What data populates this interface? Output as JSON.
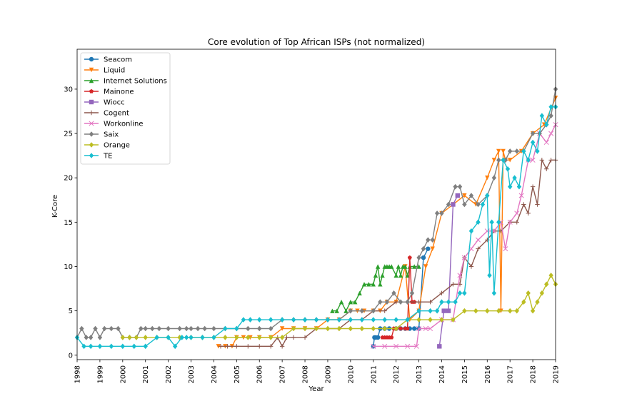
{
  "chart_data": {
    "type": "line",
    "title": "Core evolution of Top African ISPs (not normalized)",
    "xlabel": "Year",
    "ylabel": "K-Core",
    "xlim": [
      1998,
      2019
    ],
    "ylim": [
      -0.5,
      34.5
    ],
    "xticks": [
      "1998",
      "1999",
      "2000",
      "2001",
      "2002",
      "2003",
      "2004",
      "2005",
      "2006",
      "2007",
      "2008",
      "2009",
      "2010",
      "2011",
      "2012",
      "2013",
      "2014",
      "2015",
      "2016",
      "2017",
      "2018",
      "2019"
    ],
    "yticks": [
      0,
      5,
      10,
      15,
      20,
      25,
      30
    ],
    "legend_position": "upper-left",
    "grid": false,
    "series": [
      {
        "name": "Seacom",
        "color": "#1f77b4",
        "marker": "circle",
        "x": [
          2011.0,
          2011.05,
          2011.1,
          2011.2,
          2011.3,
          2011.5,
          2011.7,
          2012.0,
          2012.2,
          2012.4,
          2012.6,
          2012.8,
          2013.0,
          2013.2,
          2013.4
        ],
        "y": [
          1,
          2,
          2,
          2,
          3,
          3,
          3,
          3,
          3,
          3,
          3,
          3,
          3,
          11,
          12
        ]
      },
      {
        "name": "Liquid",
        "color": "#ff7f0e",
        "marker": "triangle-down",
        "x": [
          2004.2,
          2004.5,
          2004.8,
          2005.0,
          2005.3,
          2005.6,
          2006.0,
          2006.5,
          2007.0,
          2007.5,
          2008.0,
          2008.5,
          2009.0,
          2009.5,
          2010.0,
          2010.3,
          2010.6,
          2011.0,
          2011.3,
          2011.6,
          2012.0,
          2012.4,
          2012.6,
          2013.0,
          2013.3,
          2013.6,
          2014.0,
          2014.5,
          2015.0,
          2015.5,
          2016.0,
          2016.3,
          2016.5,
          2016.6,
          2016.7,
          2016.8,
          2017.0,
          2017.5,
          2018.0,
          2018.5,
          2019.0
        ],
        "y": [
          1,
          1,
          1,
          2,
          2,
          2,
          2,
          2,
          3,
          3,
          3,
          3,
          4,
          4,
          5,
          5,
          5,
          5,
          5,
          6,
          6,
          10,
          4,
          5,
          10,
          12,
          16,
          17,
          18,
          17,
          20,
          22,
          23,
          5,
          23,
          22,
          22,
          23,
          25,
          26,
          29
        ]
      },
      {
        "name": "Internet Solutions",
        "color": "#2ca02c",
        "marker": "triangle-up",
        "x": [
          2009.2,
          2009.4,
          2009.6,
          2009.8,
          2010.0,
          2010.2,
          2010.4,
          2010.6,
          2010.8,
          2011.0,
          2011.1,
          2011.2,
          2011.3,
          2011.4,
          2011.5,
          2011.6,
          2011.7,
          2011.8,
          2012.0,
          2012.1,
          2012.2,
          2012.3,
          2012.4,
          2012.5,
          2012.6,
          2012.8,
          2013.0
        ],
        "y": [
          5,
          5,
          6,
          5,
          6,
          6,
          7,
          8,
          8,
          8,
          9,
          10,
          8,
          9,
          10,
          10,
          10,
          10,
          9,
          10,
          9,
          10,
          10,
          9,
          10,
          10,
          10
        ]
      },
      {
        "name": "Mainone",
        "color": "#d62728",
        "marker": "pentagon",
        "x": [
          2011.4,
          2011.5,
          2011.6,
          2011.7,
          2011.8,
          2011.9,
          2012.0,
          2012.2,
          2012.4,
          2012.5,
          2012.6,
          2012.7,
          2012.8
        ],
        "y": [
          2,
          2,
          2,
          2,
          2,
          3,
          3,
          3,
          3,
          3,
          11,
          6,
          6
        ]
      },
      {
        "name": "Wiocc",
        "color": "#9467bd",
        "marker": "square",
        "x": [
          2013.9,
          2014.1,
          2014.3,
          2014.5,
          2014.7
        ],
        "y": [
          1,
          5,
          5,
          17,
          18
        ]
      },
      {
        "name": "Cogent",
        "color": "#8c564b",
        "marker": "plus",
        "x": [
          2004.3,
          2004.6,
          2005.0,
          2005.5,
          2006.0,
          2006.5,
          2006.8,
          2007.0,
          2007.2,
          2007.5,
          2008.0,
          2008.5,
          2009.0,
          2009.5,
          2010.0,
          2010.5,
          2011.0,
          2011.5,
          2012.0,
          2012.5,
          2013.0,
          2013.5,
          2014.0,
          2014.5,
          2014.8,
          2015.0,
          2015.3,
          2015.6,
          2016.0,
          2016.3,
          2016.6,
          2017.0,
          2017.3,
          2017.6,
          2017.8,
          2018.0,
          2018.2,
          2018.4,
          2018.6,
          2018.8,
          2019.0
        ],
        "y": [
          1,
          1,
          1,
          1,
          1,
          1,
          2,
          1,
          2,
          2,
          2,
          3,
          3,
          3,
          4,
          4,
          5,
          5,
          6,
          6,
          6,
          6,
          7,
          8,
          8,
          11,
          10,
          12,
          13,
          14,
          14,
          15,
          15,
          17,
          16,
          19,
          17,
          22,
          21,
          22,
          22
        ]
      },
      {
        "name": "Workonline",
        "color": "#e377c2",
        "marker": "x",
        "x": [
          2011.0,
          2011.5,
          2012.0,
          2012.5,
          2012.9,
          2013.0,
          2013.3,
          2013.5,
          2014.0,
          2014.5,
          2014.8,
          2015.0,
          2015.3,
          2015.6,
          2016.0,
          2016.3,
          2016.6,
          2016.8,
          2017.0,
          2017.3,
          2017.5,
          2017.8,
          2018.0,
          2018.3,
          2018.6,
          2018.8,
          2019.0
        ],
        "y": [
          1,
          1,
          1,
          1,
          1,
          3,
          3,
          3,
          4,
          4,
          9,
          11,
          12,
          13,
          14,
          14,
          15,
          12,
          15,
          16,
          18,
          22,
          22,
          25,
          24,
          25,
          26
        ]
      },
      {
        "name": "Saix",
        "color": "#7f7f7f",
        "marker": "diamond",
        "x": [
          1998.0,
          1998.2,
          1998.4,
          1998.6,
          1998.8,
          1999.0,
          1999.2,
          1999.5,
          1999.8,
          2000.0,
          2000.3,
          2000.6,
          2000.8,
          2001.0,
          2001.3,
          2001.6,
          2002.0,
          2002.5,
          2002.8,
          2003.0,
          2003.3,
          2003.6,
          2004.0,
          2004.5,
          2005.0,
          2005.5,
          2006.0,
          2006.5,
          2007.0,
          2007.5,
          2008.0,
          2008.5,
          2009.0,
          2009.5,
          2010.0,
          2010.5,
          2011.0,
          2011.3,
          2011.6,
          2011.9,
          2012.2,
          2012.5,
          2012.7,
          2013.0,
          2013.2,
          2013.4,
          2013.6,
          2013.8,
          2014.0,
          2014.3,
          2014.6,
          2014.8,
          2015.0,
          2015.3,
          2015.6,
          2016.0,
          2016.3,
          2016.5,
          2016.8,
          2017.0,
          2017.3,
          2017.6,
          2018.0,
          2018.3,
          2018.6,
          2018.8,
          2019.0
        ],
        "y": [
          2,
          3,
          2,
          2,
          3,
          2,
          3,
          3,
          3,
          2,
          2,
          2,
          3,
          3,
          3,
          3,
          3,
          3,
          3,
          3,
          3,
          3,
          3,
          3,
          3,
          3,
          3,
          3,
          4,
          4,
          4,
          4,
          4,
          4,
          5,
          5,
          5,
          6,
          6,
          7,
          6,
          6,
          7,
          11,
          12,
          13,
          13,
          16,
          16,
          17,
          19,
          19,
          17,
          18,
          17,
          18,
          20,
          22,
          22,
          23,
          23,
          23,
          25,
          25,
          26,
          27,
          30
        ]
      },
      {
        "name": "Orange",
        "color": "#bcbd22",
        "marker": "diamond",
        "x": [
          2000.0,
          2000.3,
          2000.6,
          2001.0,
          2001.5,
          2002.0,
          2002.5,
          2003.0,
          2003.5,
          2004.0,
          2004.5,
          2005.0,
          2005.5,
          2006.0,
          2006.5,
          2007.0,
          2007.5,
          2008.0,
          2008.5,
          2009.0,
          2009.5,
          2010.0,
          2010.5,
          2011.0,
          2011.5,
          2012.0,
          2012.5,
          2013.0,
          2013.5,
          2014.0,
          2014.5,
          2015.0,
          2015.5,
          2016.0,
          2016.5,
          2017.0,
          2017.3,
          2017.6,
          2017.8,
          2018.0,
          2018.2,
          2018.4,
          2018.6,
          2018.8,
          2019.0
        ],
        "y": [
          2,
          2,
          2,
          2,
          2,
          2,
          2,
          2,
          2,
          2,
          2,
          2,
          2,
          2,
          2,
          2,
          3,
          3,
          3,
          3,
          3,
          3,
          3,
          3,
          3,
          3,
          4,
          4,
          4,
          4,
          4,
          5,
          5,
          5,
          5,
          5,
          5,
          6,
          7,
          5,
          6,
          7,
          8,
          9,
          8
        ]
      },
      {
        "name": "TE",
        "color": "#17becf",
        "marker": "diamond",
        "x": [
          1998.0,
          1998.3,
          1998.6,
          1999.0,
          1999.5,
          2000.0,
          2000.5,
          2001.0,
          2001.5,
          2002.0,
          2002.3,
          2002.6,
          2002.8,
          2003.0,
          2003.5,
          2004.0,
          2004.5,
          2005.0,
          2005.3,
          2005.6,
          2006.0,
          2006.5,
          2007.0,
          2007.5,
          2008.0,
          2008.5,
          2009.0,
          2009.5,
          2010.0,
          2010.5,
          2011.0,
          2011.5,
          2012.0,
          2012.5,
          2013.0,
          2013.5,
          2013.8,
          2014.0,
          2014.3,
          2014.6,
          2014.8,
          2015.0,
          2015.3,
          2015.6,
          2015.8,
          2016.0,
          2016.1,
          2016.2,
          2016.3,
          2016.5,
          2016.7,
          2016.9,
          2017.0,
          2017.2,
          2017.4,
          2017.6,
          2017.8,
          2018.0,
          2018.2,
          2018.4,
          2018.6,
          2018.8,
          2019.0
        ],
        "y": [
          2,
          1,
          1,
          1,
          1,
          1,
          1,
          1,
          2,
          2,
          1,
          2,
          2,
          2,
          2,
          2,
          3,
          3,
          4,
          4,
          4,
          4,
          4,
          4,
          4,
          4,
          4,
          4,
          4,
          4,
          4,
          4,
          4,
          4,
          5,
          5,
          5,
          6,
          6,
          6,
          7,
          7,
          14,
          15,
          17,
          18,
          9,
          15,
          7,
          15,
          22,
          21,
          19,
          20,
          19,
          23,
          22,
          24,
          23,
          27,
          26,
          28,
          28
        ]
      }
    ]
  }
}
